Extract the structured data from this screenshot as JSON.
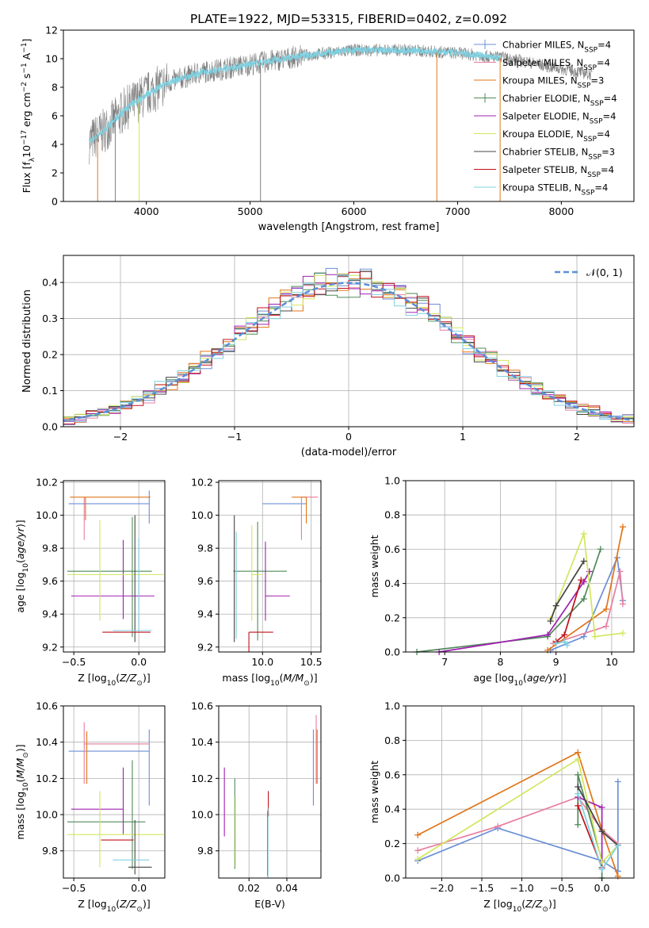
{
  "page_title": "PLATE=1922, MJD=53315, FIBERID=0402, z=0.092",
  "model_colors": {
    "Chabrier MILES": "#6b8fd6",
    "Salpeter MILES": "#e87e9f",
    "Kroupa MILES": "#e0761a",
    "Chabrier ELODIE": "#4f8a5a",
    "Salpeter ELODIE": "#a020b0",
    "Kroupa ELODIE": "#d2e65e",
    "Chabrier STELIB": "#444444",
    "Salpeter STELIB": "#c0101a",
    "Kroupa STELIB": "#7fd0e0"
  },
  "chart_data": [
    {
      "id": "spectrum",
      "type": "line",
      "title": "PLATE=1922, MJD=53315, FIBERID=0402, z=0.092",
      "xlabel": "wavelength [Angstrom, rest frame]",
      "ylabel": "Flux [f",
      "ylabel_full": "Flux [fλ10⁻¹⁷ erg cm⁻² s⁻¹ A⁻¹]",
      "xlim": [
        3200,
        8700
      ],
      "ylim": [
        0,
        12
      ],
      "xticks": [
        4000,
        5000,
        6000,
        7000,
        8000
      ],
      "yticks": [
        0,
        2,
        4,
        6,
        8,
        10,
        12
      ],
      "data_color": "#808080",
      "model_color": "#7fd0e0",
      "data_envelope": {
        "x": [
          3450,
          3600,
          3800,
          4000,
          4200,
          4500,
          5000,
          5500,
          6000,
          6500,
          7000,
          7500,
          8000,
          8300
        ],
        "y": [
          4.2,
          5.0,
          6.5,
          7.5,
          8.3,
          9.0,
          9.6,
          10.2,
          10.6,
          10.6,
          10.4,
          10.0,
          9.3,
          8.9
        ]
      },
      "legend": [
        {
          "label": "Chabrier MILES, N",
          "sub": "SSP",
          "suffix": "=4"
        },
        {
          "label": "Salpeter MILES, N",
          "sub": "SSP",
          "suffix": "=4"
        },
        {
          "label": "Kroupa MILES, N",
          "sub": "SSP",
          "suffix": "=3"
        },
        {
          "label": "Chabrier ELODIE, N",
          "sub": "SSP",
          "suffix": "=4"
        },
        {
          "label": "Salpeter ELODIE, N",
          "sub": "SSP",
          "suffix": "=4"
        },
        {
          "label": "Kroupa ELODIE, N",
          "sub": "SSP",
          "suffix": "=4"
        },
        {
          "label": "Chabrier STELIB, N",
          "sub": "SSP",
          "suffix": "=3"
        },
        {
          "label": "Salpeter STELIB, N",
          "sub": "SSP",
          "suffix": "=4"
        },
        {
          "label": "Kroupa STELIB, N",
          "sub": "SSP",
          "suffix": "=4"
        }
      ],
      "legend_placement": "upper-right"
    },
    {
      "id": "residuals",
      "type": "histogram",
      "xlabel": "(data-model)/error",
      "ylabel": "Normed distribution",
      "xlim": [
        -2.5,
        2.5
      ],
      "ylim": [
        0,
        0.475
      ],
      "xticks": [
        -2,
        -1,
        0,
        1,
        2
      ],
      "yticks": [
        0.0,
        0.1,
        0.2,
        0.3,
        0.4
      ],
      "grid": true,
      "legend": "𝒩(0, 1)",
      "legend_placement": "upper-right",
      "gaussian": {
        "mean": 0,
        "sigma": 1,
        "color": "#5b8fd6"
      }
    },
    {
      "id": "age_vs_Z",
      "type": "errorbar",
      "xlabel": "Z [log",
      "xlabel_full": "Z [log10(Z/Z⊙)]",
      "ylabel": "age  [log",
      "ylabel_full": "age  [log10(age/yr)]",
      "xlim": [
        -0.58,
        0.2
      ],
      "ylim": [
        9.17,
        10.21
      ],
      "xticks": [
        -0.5,
        0.0
      ],
      "yticks": [
        9.2,
        9.4,
        9.6,
        9.8,
        10.0,
        10.2
      ],
      "grid": true,
      "points": [
        {
          "model": "Chabrier MILES",
          "x": 0.08,
          "xerr": [
            0.62,
            0.0
          ],
          "y": 10.07,
          "yerr": [
            0.0,
            0.0
          ],
          "vx": 0.08,
          "vy": [
            9.95,
            10.15
          ]
        },
        {
          "model": "Salpeter MILES",
          "x": -0.42,
          "xerr": [
            0.0,
            0.0
          ],
          "y": 10.11,
          "yerr": [
            0.26,
            0.0
          ]
        },
        {
          "model": "Kroupa MILES",
          "x": -0.41,
          "xerr": [
            0.12,
            0.5
          ],
          "y": 10.11,
          "yerr": [
            0.14,
            0.0
          ]
        },
        {
          "model": "Chabrier ELODIE",
          "x": -0.05,
          "xerr": [
            0.5,
            0.15
          ],
          "y": 9.66,
          "yerr": [
            0.4,
            0.33
          ]
        },
        {
          "model": "Salpeter ELODIE",
          "x": -0.12,
          "xerr": [
            0.4,
            0.24
          ],
          "y": 9.51,
          "yerr": [
            0.14,
            0.34
          ]
        },
        {
          "model": "Kroupa ELODIE",
          "x": -0.3,
          "xerr": [
            0.25,
            0.49
          ],
          "y": 9.64,
          "yerr": [
            0.28,
            0.33
          ]
        },
        {
          "model": "Chabrier STELIB",
          "x": -0.03,
          "xerr": [
            0.0,
            0.0
          ],
          "y": 9.6,
          "yerr": [
            0.37,
            0.4
          ]
        },
        {
          "model": "Salpeter STELIB",
          "x": -0.04,
          "xerr": [
            0.24,
            0.13
          ],
          "y": 9.29,
          "yerr": [
            0.0,
            0.0
          ]
        },
        {
          "model": "Kroupa STELIB",
          "x": 0.0,
          "xerr": [
            0.2,
            0.1
          ],
          "y": 9.3,
          "yerr": [
            0.0,
            0.56
          ]
        }
      ]
    },
    {
      "id": "age_vs_mass",
      "type": "errorbar",
      "xlabel": "mass [log",
      "xlabel_full": "mass [log10(M/M⊙)]",
      "xlim": [
        9.55,
        10.6
      ],
      "ylim": [
        9.17,
        10.21
      ],
      "xticks": [
        10.0,
        10.5
      ],
      "yticks": [
        9.2,
        9.4,
        9.6,
        9.8,
        10.0,
        10.2
      ],
      "grid": true,
      "points": [
        {
          "model": "Chabrier MILES",
          "x": 10.35,
          "xerr": [
            0.35,
            0.1
          ],
          "y": 10.07,
          "yerr": [
            0.0,
            0.0
          ]
        },
        {
          "model": "Salpeter MILES",
          "x": 10.4,
          "xerr": [
            0.0,
            0.17
          ],
          "y": 10.11,
          "yerr": [
            0.26,
            0.0
          ]
        },
        {
          "model": "Kroupa MILES",
          "x": 10.45,
          "xerr": [
            0.15,
            0.0
          ],
          "y": 10.11,
          "yerr": [
            0.16,
            0.0
          ]
        },
        {
          "model": "Chabrier ELODIE",
          "x": 9.95,
          "xerr": [
            0.25,
            0.3
          ],
          "y": 9.66,
          "yerr": [
            0.42,
            0.3
          ]
        },
        {
          "model": "Salpeter ELODIE",
          "x": 10.03,
          "xerr": [
            0.0,
            0.25
          ],
          "y": 9.51,
          "yerr": [
            0.15,
            0.33
          ]
        },
        {
          "model": "Kroupa ELODIE",
          "x": 9.89,
          "xerr": [
            0.0,
            0.1
          ],
          "y": 9.64,
          "yerr": [
            0.28,
            0.3
          ]
        },
        {
          "model": "Chabrier STELIB",
          "x": 9.71,
          "xerr": [
            0.0,
            0.0
          ],
          "y": 9.6,
          "yerr": [
            0.37,
            0.4
          ]
        },
        {
          "model": "Salpeter STELIB",
          "x": 9.86,
          "xerr": [
            0.0,
            0.25
          ],
          "y": 9.29,
          "yerr": [
            0.2,
            0.0
          ]
        },
        {
          "model": "Kroupa STELIB",
          "x": 9.73,
          "xerr": [
            0.0,
            0.0
          ],
          "y": 9.3,
          "yerr": [
            0.05,
            0.6
          ]
        }
      ]
    },
    {
      "id": "massweight_vs_age",
      "type": "line",
      "xlabel": "age  [log",
      "xlabel_full": "age  [log10(age/yr)]",
      "ylabel": "mass weight",
      "xlim": [
        6.3,
        10.4
      ],
      "ylim": [
        0.0,
        1.0
      ],
      "xticks": [
        7,
        8,
        9,
        10
      ],
      "yticks": [
        0.0,
        0.2,
        0.4,
        0.6,
        0.8,
        1.0
      ],
      "grid": true,
      "series": [
        {
          "model": "Chabrier MILES",
          "x": [
            8.9,
            9.5,
            10.1,
            10.2
          ],
          "y": [
            0.01,
            0.09,
            0.55,
            0.3
          ]
        },
        {
          "model": "Salpeter MILES",
          "x": [
            8.95,
            9.9,
            10.15,
            10.2
          ],
          "y": [
            0.05,
            0.15,
            0.47,
            0.28
          ]
        },
        {
          "model": "Kroupa MILES",
          "x": [
            8.85,
            9.9,
            10.2
          ],
          "y": [
            0.01,
            0.25,
            0.73
          ]
        },
        {
          "model": "Chabrier ELODIE",
          "x": [
            6.5,
            8.85,
            9.5,
            9.8
          ],
          "y": [
            0.0,
            0.09,
            0.31,
            0.6
          ]
        },
        {
          "model": "Salpeter ELODIE",
          "x": [
            6.9,
            8.85,
            9.5,
            9.6
          ],
          "y": [
            0.0,
            0.1,
            0.41,
            0.47
          ]
        },
        {
          "model": "Kroupa ELODIE",
          "x": [
            8.9,
            9.5,
            9.7,
            10.2
          ],
          "y": [
            0.19,
            0.69,
            0.09,
            0.11
          ]
        },
        {
          "model": "Chabrier STELIB",
          "x": [
            8.9,
            9.0,
            9.5
          ],
          "y": [
            0.18,
            0.27,
            0.53
          ]
        },
        {
          "model": "Salpeter STELIB",
          "x": [
            9.0,
            9.15,
            9.45
          ],
          "y": [
            0.06,
            0.1,
            0.42
          ]
        },
        {
          "model": "Kroupa STELIB",
          "x": [
            9.0,
            9.15,
            9.2
          ],
          "y": [
            0.05,
            0.06,
            0.04
          ]
        }
      ]
    },
    {
      "id": "mass_vs_Z",
      "type": "errorbar",
      "xlabel": "Z [log",
      "xlabel_full": "Z [log10(Z/Z⊙)]",
      "ylabel": "mass [log",
      "ylabel_full": "mass [log10(M/M⊙)]",
      "xlim": [
        -0.58,
        0.2
      ],
      "ylim": [
        9.65,
        10.6
      ],
      "xticks": [
        -0.5,
        0.0
      ],
      "yticks": [
        9.8,
        10.0,
        10.2,
        10.4,
        10.6
      ],
      "grid": true,
      "points": [
        {
          "model": "Chabrier MILES",
          "x": 0.08,
          "xerr": [
            0.62,
            0.0
          ],
          "y": 10.35,
          "yerr": [
            0.3,
            0.12
          ]
        },
        {
          "model": "Salpeter MILES",
          "x": -0.42,
          "xerr": [
            0.0,
            0.5
          ],
          "y": 10.39,
          "yerr": [
            0.22,
            0.12
          ]
        },
        {
          "model": "Kroupa MILES",
          "x": -0.4,
          "xerr": [
            0.0,
            0.0
          ],
          "y": 10.3,
          "yerr": [
            0.13,
            0.16
          ]
        },
        {
          "model": "Chabrier ELODIE",
          "x": -0.05,
          "xerr": [
            0.5,
            0.1
          ],
          "y": 9.96,
          "yerr": [
            0.26,
            0.34
          ]
        },
        {
          "model": "Salpeter ELODIE",
          "x": -0.12,
          "xerr": [
            0.4,
            0.0
          ],
          "y": 10.03,
          "yerr": [
            0.14,
            0.23
          ]
        },
        {
          "model": "Kroupa ELODIE",
          "x": -0.3,
          "xerr": [
            0.25,
            0.49
          ],
          "y": 9.89,
          "yerr": [
            0.18,
            0.24
          ]
        },
        {
          "model": "Chabrier STELIB",
          "x": -0.03,
          "xerr": [
            0.05,
            0.13
          ],
          "y": 9.71,
          "yerr": [
            0.04,
            0.26
          ]
        },
        {
          "model": "Salpeter STELIB",
          "x": -0.04,
          "xerr": [
            0.25,
            0.0
          ],
          "y": 9.86,
          "yerr": [
            0.0,
            0.0
          ]
        },
        {
          "model": "Kroupa STELIB",
          "x": 0.0,
          "xerr": [
            0.2,
            0.08
          ],
          "y": 9.75,
          "yerr": [
            0.0,
            0.0
          ]
        }
      ]
    },
    {
      "id": "mass_vs_EBV",
      "type": "errorbar",
      "xlabel": "E(B-V)",
      "xlim": [
        0.004,
        0.058
      ],
      "ylim": [
        9.65,
        10.6
      ],
      "xticks": [
        0.02,
        0.04
      ],
      "yticks": [
        9.8,
        10.0,
        10.2,
        10.4,
        10.6
      ],
      "grid": true,
      "points": [
        {
          "model": "Chabrier MILES",
          "x": 0.054,
          "y": 10.26,
          "yerr": [
            0.21,
            0.21
          ]
        },
        {
          "model": "Salpeter MILES",
          "x": 0.0555,
          "y": 10.38,
          "yerr": [
            0.21,
            0.17
          ]
        },
        {
          "model": "Kroupa MILES",
          "x": 0.056,
          "y": 10.32,
          "yerr": [
            0.15,
            0.15
          ]
        },
        {
          "model": "Chabrier ELODIE",
          "x": 0.0125,
          "y": 9.95,
          "yerr": [
            0.25,
            0.25
          ]
        },
        {
          "model": "Salpeter ELODIE",
          "x": 0.007,
          "y": 10.07,
          "yerr": [
            0.19,
            0.19
          ]
        },
        {
          "model": "Kroupa ELODIE",
          "x": 0.0128,
          "y": 9.9,
          "yerr": [
            0.19,
            0.2
          ]
        },
        {
          "model": "Chabrier STELIB",
          "x": 0.0298,
          "y": 9.84,
          "yerr": [
            0.18,
            0.18
          ]
        },
        {
          "model": "Salpeter STELIB",
          "x": 0.0302,
          "y": 10.06,
          "yerr": [
            0.07,
            0.07
          ]
        },
        {
          "model": "Kroupa STELIB",
          "x": 0.03,
          "y": 9.82,
          "yerr": [
            0.22,
            0.22
          ]
        }
      ]
    },
    {
      "id": "massweight_vs_Z",
      "type": "line",
      "xlabel": "Z [log",
      "xlabel_full": "Z [log10(Z/Z⊙)]",
      "ylabel": "mass weight",
      "xlim": [
        -2.45,
        0.4
      ],
      "ylim": [
        0.0,
        1.0
      ],
      "xticks": [
        -2.0,
        -1.5,
        -1.0,
        -0.5,
        0.0
      ],
      "yticks": [
        0.0,
        0.2,
        0.4,
        0.6,
        0.8,
        1.0
      ],
      "grid": true,
      "series": [
        {
          "model": "Chabrier MILES",
          "x": [
            -2.3,
            -1.3,
            0.0,
            0.2,
            0.2
          ],
          "y": [
            0.1,
            0.29,
            0.1,
            0.04,
            0.56
          ]
        },
        {
          "model": "Salpeter MILES",
          "x": [
            -2.3,
            -1.3,
            -0.3,
            0.0,
            0.2
          ],
          "y": [
            0.16,
            0.3,
            0.47,
            0.28,
            0.2
          ]
        },
        {
          "model": "Kroupa MILES",
          "x": [
            -2.3,
            -0.3,
            0.0,
            0.2
          ],
          "y": [
            0.25,
            0.73,
            0.28,
            0.01
          ]
        },
        {
          "model": "Chabrier ELODIE",
          "x": [
            -0.3,
            -0.3,
            0.0,
            0.0
          ],
          "y": [
            0.31,
            0.6,
            0.1,
            0.0
          ]
        },
        {
          "model": "Salpeter ELODIE",
          "x": [
            -0.3,
            0.0,
            0.0
          ],
          "y": [
            0.47,
            0.41,
            0.1
          ]
        },
        {
          "model": "Kroupa ELODIE",
          "x": [
            -2.3,
            -0.3,
            0.0,
            0.2
          ],
          "y": [
            0.11,
            0.69,
            0.09,
            0.19
          ]
        },
        {
          "model": "Chabrier STELIB",
          "x": [
            -0.3,
            0.0,
            0.2
          ],
          "y": [
            0.53,
            0.27,
            0.19
          ]
        },
        {
          "model": "Salpeter STELIB",
          "x": [
            -0.3,
            0.0
          ],
          "y": [
            0.42,
            0.06
          ]
        },
        {
          "model": "Kroupa STELIB",
          "x": [
            -0.3,
            0.0,
            0.2
          ],
          "y": [
            0.49,
            0.05,
            0.19
          ]
        }
      ]
    }
  ]
}
